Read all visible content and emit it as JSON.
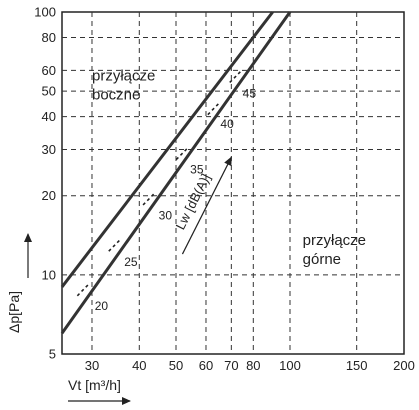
{
  "chart_data": {
    "type": "line",
    "x_scale": "log",
    "y_scale": "log",
    "grid": true,
    "xlim": [
      25,
      200
    ],
    "ylim": [
      5,
      100
    ],
    "xlabel": "Vt [m³/h]",
    "ylabel": "Δp[Pa]",
    "x_ticks": [
      {
        "value": 30,
        "label": "30"
      },
      {
        "value": 40,
        "label": "40"
      },
      {
        "value": 50,
        "label": "50"
      },
      {
        "value": 60,
        "label": "60"
      },
      {
        "value": 70,
        "label": "70"
      },
      {
        "value": 80,
        "label": "80"
      },
      {
        "value": 100,
        "label": "100"
      },
      {
        "value": 150,
        "label": "150"
      },
      {
        "value": 200,
        "label": "200"
      }
    ],
    "y_ticks": [
      {
        "value": 5,
        "label": "5"
      },
      {
        "value": 10,
        "label": "10"
      },
      {
        "value": 20,
        "label": "20"
      },
      {
        "value": 30,
        "label": "30"
      },
      {
        "value": 40,
        "label": "40"
      },
      {
        "value": 50,
        "label": "50"
      },
      {
        "value": 60,
        "label": "60"
      },
      {
        "value": 80,
        "label": "80"
      },
      {
        "value": 100,
        "label": "100"
      }
    ],
    "series": [
      {
        "name": "przyłącze boczne",
        "x": [
          25,
          90
        ],
        "y": [
          9,
          100
        ]
      },
      {
        "name": "przyłącze górne",
        "x": [
          25,
          100
        ],
        "y": [
          6,
          100
        ]
      }
    ],
    "region_labels": [
      {
        "text": "przyłącze boczne",
        "x": 30,
        "y": 55
      },
      {
        "text": "przyłącze górne",
        "x": 108,
        "y": 13
      }
    ],
    "noise_marks": [
      {
        "label": "20",
        "x": 28.5,
        "y": 8.8,
        "label_x": 30.5,
        "label_y": 7.6
      },
      {
        "label": "25",
        "x": 34.5,
        "y": 13,
        "label_x": 36.5,
        "label_y": 11.2
      },
      {
        "label": "30",
        "x": 42.5,
        "y": 19.5,
        "label_x": 45,
        "label_y": 16.8
      },
      {
        "label": "35",
        "x": 52,
        "y": 29,
        "label_x": 54.5,
        "label_y": 25.2
      },
      {
        "label": "40",
        "x": 63,
        "y": 43,
        "label_x": 65.5,
        "label_y": 37.5
      },
      {
        "label": "45",
        "x": 72,
        "y": 57,
        "label_x": 75,
        "label_y": 49
      }
    ],
    "lw_annotation": {
      "text": "Lw [dB(A)]",
      "from": {
        "x": 52,
        "y": 12
      },
      "to": {
        "x": 70,
        "y": 28
      }
    }
  }
}
